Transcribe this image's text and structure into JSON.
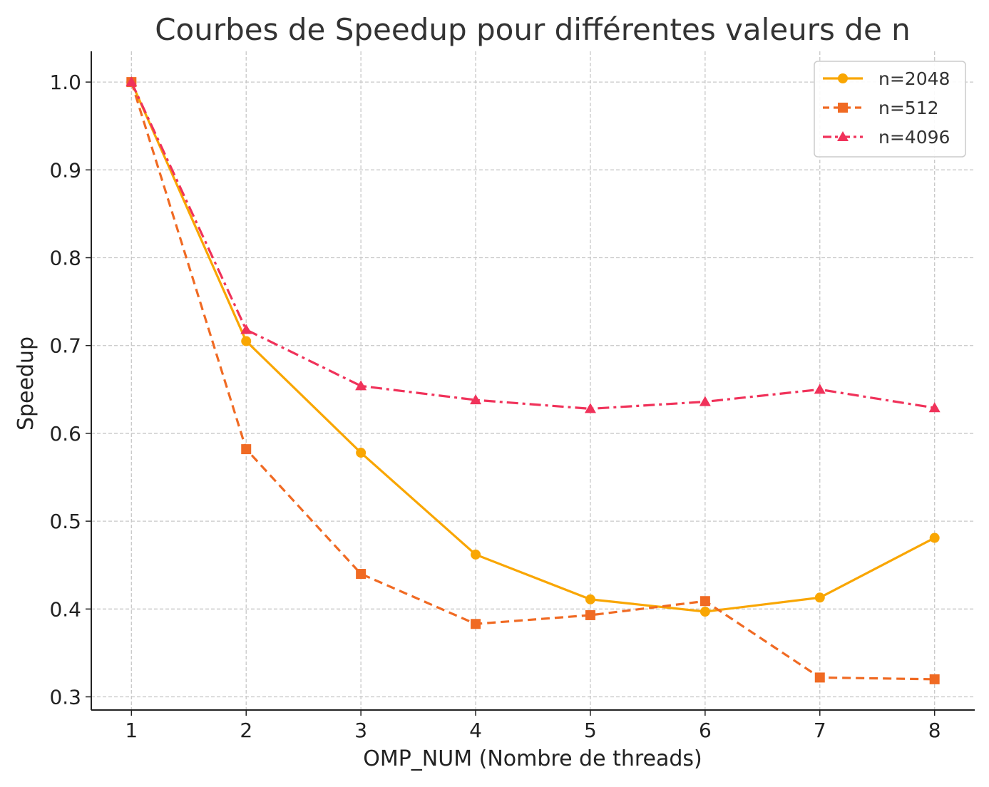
{
  "chart_data": {
    "type": "line",
    "title": "Courbes de Speedup pour différentes valeurs de n",
    "xlabel": "OMP_NUM (Nombre de threads)",
    "ylabel": "Speedup",
    "x": [
      1,
      2,
      3,
      4,
      5,
      6,
      7,
      8
    ],
    "xticks": [
      "1",
      "2",
      "3",
      "4",
      "5",
      "6",
      "7",
      "8"
    ],
    "yticks": [
      "0.3",
      "0.4",
      "0.5",
      "0.6",
      "0.7",
      "0.8",
      "0.9",
      "1.0"
    ],
    "xlim": [
      0.65,
      8.35
    ],
    "ylim": [
      0.285,
      1.035
    ],
    "grid": true,
    "legend_position": "top-right",
    "series": [
      {
        "name": "n=2048",
        "color": "#F9A602",
        "linestyle": "solid",
        "marker": "circle",
        "values": [
          1.0,
          0.705,
          0.578,
          0.462,
          0.411,
          0.397,
          0.413,
          0.481
        ]
      },
      {
        "name": "n=512",
        "color": "#F06A23",
        "linestyle": "dashed",
        "marker": "square",
        "values": [
          1.0,
          0.582,
          0.44,
          0.383,
          0.393,
          0.409,
          0.322,
          0.32
        ]
      },
      {
        "name": "n=4096",
        "color": "#F0325A",
        "linestyle": "dashdot",
        "marker": "triangle",
        "values": [
          1.0,
          0.718,
          0.654,
          0.638,
          0.628,
          0.636,
          0.65,
          0.629
        ]
      }
    ]
  }
}
